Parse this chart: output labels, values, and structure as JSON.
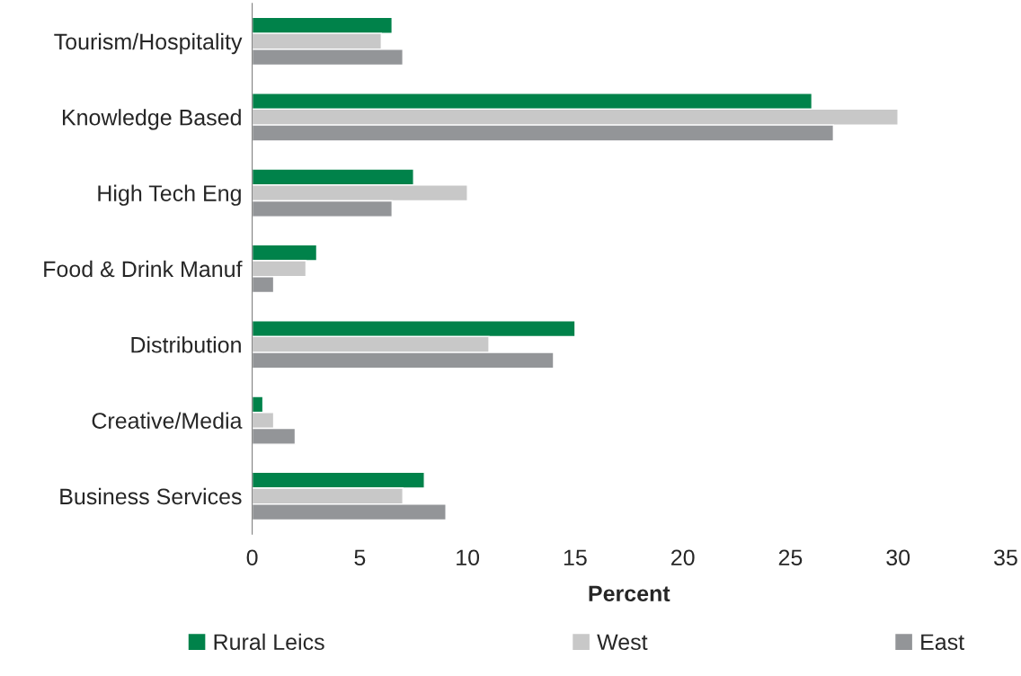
{
  "chart_data": {
    "type": "bar",
    "orientation": "horizontal",
    "xlabel": "Percent",
    "categories": [
      "Tourism/Hospitality",
      "Knowledge Based",
      "High Tech Eng",
      "Food & Drink Manuf",
      "Distribution",
      "Creative/Media",
      "Business Services"
    ],
    "series": [
      {
        "name": "Rural Leics",
        "color": "#00824a",
        "values": [
          6.5,
          26,
          7.5,
          3,
          15,
          0.5,
          8
        ]
      },
      {
        "name": "West",
        "color": "#c8c8c8",
        "values": [
          6,
          30,
          10,
          2.5,
          11,
          1,
          7
        ]
      },
      {
        "name": "East",
        "color": "#939598",
        "values": [
          7,
          27,
          6.5,
          1,
          14,
          2,
          9
        ]
      }
    ],
    "xlim": [
      0,
      35
    ],
    "xticks": [
      0,
      5,
      10,
      15,
      20,
      25,
      30,
      35
    ],
    "grid": false,
    "legend": "bottom"
  }
}
